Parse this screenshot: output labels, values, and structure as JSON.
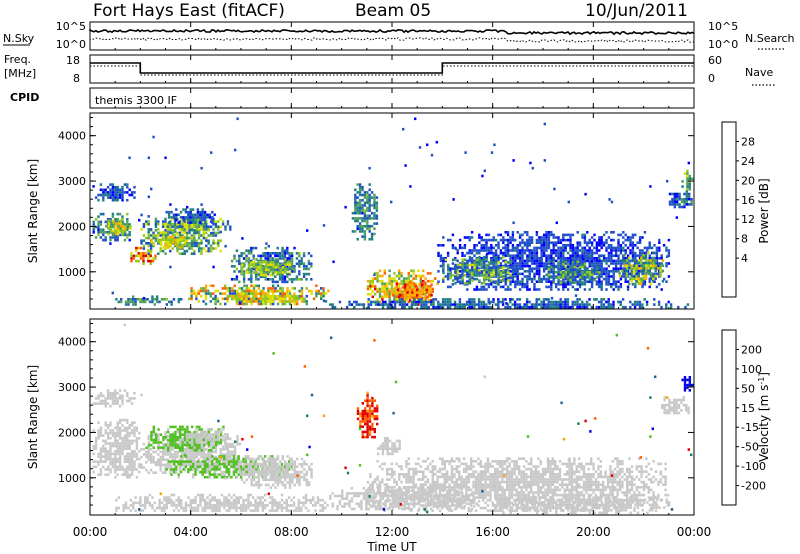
{
  "header": {
    "station": "Fort Hays East (fitACF)",
    "beam": "Beam 05",
    "date": "10/Jun/2011"
  },
  "strips": {
    "nsky": {
      "label": "N.Sky",
      "right_label": "N.Search",
      "left_ticks": [
        "10^5",
        "10^0"
      ],
      "right_ticks": [
        "10^5",
        "10^0"
      ]
    },
    "freq": {
      "label_lines": [
        "Freq.",
        "[MHz]"
      ],
      "right_label": "Nave",
      "left_ticks": [
        "18",
        "8"
      ],
      "right_ticks": [
        "60",
        "0"
      ],
      "freq_steps_hours": [
        0,
        2.0,
        14.0,
        24
      ],
      "freq_levels": [
        1,
        0,
        1
      ]
    },
    "cpid": {
      "label": "CPID",
      "program": "themis 3300 IF"
    }
  },
  "colors": {
    "power_scale": [
      "#0000ff",
      "#2050c8",
      "#207f7f",
      "#50a060",
      "#90c820",
      "#e0e000",
      "#ffaa00",
      "#ff6000",
      "#e00000"
    ],
    "velocity_scale": [
      "#0000e0",
      "#206090",
      "#208050",
      "#50c020",
      "#c8c8c8",
      "#c8c8c8",
      "#ffa000",
      "#ff6000",
      "#e00000"
    ],
    "gs_gray": "#c8c8c8"
  },
  "chart_data": [
    {
      "type": "heatmap",
      "title": "Power [dB]",
      "ylabel": "Slant Range [km]",
      "xlabel": "",
      "y_ticks": [
        "1000",
        "2000",
        "3000",
        "4000"
      ],
      "y_tick_values": [
        1000,
        2000,
        3000,
        4000
      ],
      "ylim": [
        180,
        4500
      ],
      "xlim_hours": [
        0,
        24
      ],
      "colorbar": {
        "label": "Power [dB]",
        "tick_labels": [
          "4",
          "8",
          "12",
          "16",
          "20",
          "24",
          "28"
        ],
        "range": [
          0,
          30
        ]
      },
      "blobs": [
        {
          "t0": 0.1,
          "t1": 1.8,
          "r0": 2600,
          "r1": 2950,
          "v0": 2,
          "v1": 8
        },
        {
          "t0": 0.1,
          "t1": 1.6,
          "r0": 1700,
          "r1": 2300,
          "v0": 3,
          "v1": 14
        },
        {
          "t0": 0.6,
          "t1": 1.6,
          "r0": 1850,
          "r1": 2150,
          "v0": 12,
          "v1": 22
        },
        {
          "t0": 1.6,
          "t1": 2.6,
          "r0": 1150,
          "r1": 1550,
          "v0": 14,
          "v1": 28
        },
        {
          "t0": 2.0,
          "t1": 5.2,
          "r0": 1400,
          "r1": 2000,
          "v0": 4,
          "v1": 18
        },
        {
          "t0": 2.4,
          "t1": 3.8,
          "r0": 1550,
          "r1": 1850,
          "v0": 14,
          "v1": 22
        },
        {
          "t0": 2.0,
          "t1": 5.6,
          "r0": 1900,
          "r1": 2250,
          "v0": 4,
          "v1": 20
        },
        {
          "t0": 3.0,
          "t1": 5.0,
          "r0": 2100,
          "r1": 2400,
          "v0": 2,
          "v1": 10
        },
        {
          "t0": 5.6,
          "t1": 8.8,
          "r0": 750,
          "r1": 1550,
          "v0": 2,
          "v1": 14
        },
        {
          "t0": 6.0,
          "t1": 8.0,
          "r0": 950,
          "r1": 1300,
          "v0": 10,
          "v1": 20
        },
        {
          "t0": 3.8,
          "t1": 9.5,
          "r0": 300,
          "r1": 720,
          "v0": 4,
          "v1": 26
        },
        {
          "t0": 5.5,
          "t1": 8.5,
          "r0": 330,
          "r1": 600,
          "v0": 14,
          "v1": 24
        },
        {
          "t0": 1.0,
          "t1": 3.6,
          "r0": 300,
          "r1": 480,
          "v0": 4,
          "v1": 14
        },
        {
          "t0": 10.4,
          "t1": 11.4,
          "r0": 1700,
          "r1": 2950,
          "v0": 3,
          "v1": 14
        },
        {
          "t0": 11.0,
          "t1": 13.8,
          "r0": 300,
          "r1": 1050,
          "v0": 10,
          "v1": 28
        },
        {
          "t0": 12.0,
          "t1": 13.6,
          "r0": 350,
          "r1": 800,
          "v0": 20,
          "v1": 28
        },
        {
          "t0": 13.8,
          "t1": 23.0,
          "r0": 600,
          "r1": 1900,
          "v0": 2,
          "v1": 7
        },
        {
          "t0": 14.0,
          "t1": 16.8,
          "r0": 750,
          "r1": 1350,
          "v0": 4,
          "v1": 18
        },
        {
          "t0": 18.0,
          "t1": 20.2,
          "r0": 750,
          "r1": 1250,
          "v0": 4,
          "v1": 16
        },
        {
          "t0": 21.0,
          "t1": 22.8,
          "r0": 750,
          "r1": 1450,
          "v0": 6,
          "v1": 22
        },
        {
          "t0": 23.0,
          "t1": 23.9,
          "r0": 2400,
          "r1": 2800,
          "v0": 2,
          "v1": 12
        },
        {
          "t0": 23.5,
          "t1": 23.9,
          "r0": 2800,
          "r1": 3250,
          "v0": 6,
          "v1": 20
        },
        {
          "t0": 9.5,
          "t1": 23.8,
          "r0": 200,
          "r1": 420,
          "v0": 2,
          "v1": 10
        },
        {
          "t0": 0.0,
          "t1": 24.0,
          "r0": 250,
          "r1": 4400,
          "v0": 2,
          "v1": 5,
          "sparse": 0.004
        }
      ]
    },
    {
      "type": "heatmap",
      "title": "Velocity [m s^-1]",
      "ylabel": "Slant Range [km]",
      "xlabel": "Time UT",
      "x_ticks": [
        "00:00",
        "04:00",
        "08:00",
        "12:00",
        "16:00",
        "20:00",
        "00:00"
      ],
      "x_tick_hours": [
        0,
        4,
        8,
        12,
        16,
        20,
        24
      ],
      "y_ticks": [
        "1000",
        "2000",
        "3000",
        "4000"
      ],
      "y_tick_values": [
        1000,
        2000,
        3000,
        4000
      ],
      "ylim": [
        180,
        4500
      ],
      "xlim_hours": [
        0,
        24
      ],
      "colorbar": {
        "label": "Velocity [m s^-1]",
        "tick_labels": [
          "200",
          "100",
          "50",
          "15",
          "-15",
          "-50",
          "-100",
          "-200"
        ],
        "range": [
          -250,
          250
        ]
      },
      "blobs": [
        {
          "t0": 0.1,
          "t1": 1.8,
          "r0": 2600,
          "r1": 2950,
          "v0": -15,
          "v1": 15,
          "gs": true
        },
        {
          "t0": 0.1,
          "t1": 2.0,
          "r0": 1000,
          "r1": 2300,
          "v0": -15,
          "v1": 15,
          "gs": true
        },
        {
          "t0": 2.0,
          "t1": 6.0,
          "r0": 1100,
          "r1": 2000,
          "v0": -15,
          "v1": 15,
          "gs": true
        },
        {
          "t0": 2.2,
          "t1": 5.5,
          "r0": 1600,
          "r1": 2150,
          "v0": 20,
          "v1": 60
        },
        {
          "t0": 3.8,
          "t1": 5.5,
          "r0": 1800,
          "r1": 2100,
          "v0": -60,
          "v1": -20
        },
        {
          "t0": 3.0,
          "t1": 8.0,
          "r0": 1000,
          "r1": 1500,
          "v0": 15,
          "v1": 60
        },
        {
          "t0": 5.8,
          "t1": 8.8,
          "r0": 800,
          "r1": 1500,
          "v0": -15,
          "v1": 15,
          "gs": true
        },
        {
          "t0": 1.0,
          "t1": 9.5,
          "r0": 250,
          "r1": 650,
          "v0": -15,
          "v1": 15,
          "gs": true
        },
        {
          "t0": 10.6,
          "t1": 11.4,
          "r0": 1900,
          "r1": 2900,
          "v0": -260,
          "v1": -120
        },
        {
          "t0": 11.4,
          "t1": 12.4,
          "r0": 1500,
          "r1": 1900,
          "v0": -80,
          "v1": -30
        },
        {
          "t0": 11.0,
          "t1": 23.0,
          "r0": 250,
          "r1": 1450,
          "v0": -15,
          "v1": 15,
          "gs": true
        },
        {
          "t0": 9.5,
          "t1": 15.5,
          "r0": 300,
          "r1": 800,
          "v0": -80,
          "v1": -20
        },
        {
          "t0": 16.0,
          "t1": 23.0,
          "r0": 250,
          "r1": 600,
          "v0": -80,
          "v1": -20
        },
        {
          "t0": 22.5,
          "t1": 23.8,
          "r0": 2400,
          "r1": 2800,
          "v0": -15,
          "v1": 15,
          "gs": true
        },
        {
          "t0": 23.5,
          "t1": 23.9,
          "r0": 2950,
          "r1": 3300,
          "v0": 200,
          "v1": 260
        },
        {
          "t0": 0.0,
          "t1": 24.0,
          "r0": 250,
          "r1": 4400,
          "v0": -250,
          "v1": 250,
          "sparse": 0.003
        }
      ]
    }
  ]
}
